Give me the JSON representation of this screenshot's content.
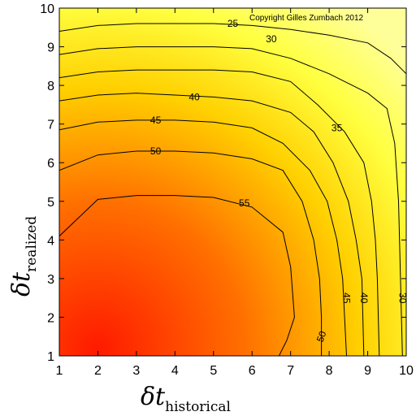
{
  "chart_data": {
    "type": "heatmap",
    "style": "filled-contour",
    "copyright": "Copyright Gilles Zumbach 2012",
    "xlabel": {
      "main": "δt",
      "sub": "historical"
    },
    "ylabel": {
      "main": "δt",
      "sub": "realized"
    },
    "xlim": [
      1,
      10
    ],
    "ylim": [
      1,
      10
    ],
    "xticks": [
      1,
      2,
      3,
      4,
      5,
      6,
      7,
      8,
      9,
      10
    ],
    "yticks": [
      1,
      2,
      3,
      4,
      5,
      6,
      7,
      8,
      9,
      10
    ],
    "grid": false,
    "colormap": [
      "#ff1a00",
      "#ff7000",
      "#ffd000",
      "#ffff40",
      "#ffff99"
    ],
    "contours": [
      {
        "level": 25,
        "label": "25",
        "label_at": [
          5.5,
          9.6
        ],
        "points": [
          [
            1,
            9.4
          ],
          [
            2,
            9.55
          ],
          [
            3,
            9.6
          ],
          [
            4,
            9.6
          ],
          [
            5,
            9.6
          ],
          [
            6,
            9.55
          ],
          [
            7,
            9.45
          ],
          [
            8,
            9.3
          ],
          [
            9,
            9.1
          ],
          [
            9.6,
            8.7
          ],
          [
            10,
            8.3
          ]
        ]
      },
      {
        "level": 30,
        "label": "30",
        "label_at": [
          6.5,
          9.2
        ],
        "points": [
          [
            1,
            8.8
          ],
          [
            2,
            8.95
          ],
          [
            3,
            9.0
          ],
          [
            4,
            9.0
          ],
          [
            5,
            9.0
          ],
          [
            6,
            8.95
          ],
          [
            7,
            8.7
          ],
          [
            8,
            8.3
          ],
          [
            9,
            7.8
          ],
          [
            9.5,
            7.4
          ],
          [
            9.7,
            6.5
          ],
          [
            9.8,
            5.0
          ],
          [
            9.85,
            3.0
          ],
          [
            9.9,
            1.0
          ]
        ]
      },
      {
        "level": 35,
        "label": "35",
        "label_at": [
          8.2,
          6.9
        ],
        "points": [
          [
            1,
            8.2
          ],
          [
            2,
            8.35
          ],
          [
            3,
            8.4
          ],
          [
            4,
            8.4
          ],
          [
            5,
            8.4
          ],
          [
            6,
            8.35
          ],
          [
            7,
            8.1
          ],
          [
            7.7,
            7.5
          ],
          [
            8.4,
            6.8
          ],
          [
            8.9,
            6.0
          ],
          [
            9.1,
            5.0
          ],
          [
            9.2,
            4.0
          ],
          [
            9.25,
            3.0
          ],
          [
            9.3,
            1.0
          ]
        ]
      },
      {
        "level": 40,
        "label": "40",
        "label_at": [
          4.5,
          7.7
        ],
        "points": [
          [
            1,
            7.6
          ],
          [
            2,
            7.75
          ],
          [
            3,
            7.8
          ],
          [
            4,
            7.75
          ],
          [
            5,
            7.7
          ],
          [
            6,
            7.6
          ],
          [
            7,
            7.3
          ],
          [
            7.6,
            6.8
          ],
          [
            8.1,
            6.0
          ],
          [
            8.5,
            5.0
          ],
          [
            8.7,
            4.0
          ],
          [
            8.85,
            3.0
          ],
          [
            8.9,
            1.0
          ]
        ]
      },
      {
        "level": 45,
        "label": "45",
        "label_at": [
          3.5,
          7.1
        ],
        "points": [
          [
            1,
            6.85
          ],
          [
            2,
            7.05
          ],
          [
            3,
            7.1
          ],
          [
            4,
            7.1
          ],
          [
            5,
            7.05
          ],
          [
            6,
            6.9
          ],
          [
            6.8,
            6.5
          ],
          [
            7.5,
            5.8
          ],
          [
            7.95,
            5.0
          ],
          [
            8.2,
            4.0
          ],
          [
            8.35,
            3.0
          ],
          [
            8.4,
            2.0
          ],
          [
            8.45,
            1.0
          ]
        ]
      },
      {
        "level": 50,
        "label": "50",
        "label_at": [
          3.5,
          6.3
        ],
        "points": [
          [
            1,
            5.8
          ],
          [
            2,
            6.2
          ],
          [
            3,
            6.3
          ],
          [
            4,
            6.3
          ],
          [
            5,
            6.25
          ],
          [
            6,
            6.1
          ],
          [
            6.8,
            5.8
          ],
          [
            7.3,
            5.0
          ],
          [
            7.6,
            4.0
          ],
          [
            7.75,
            3.0
          ],
          [
            7.8,
            2.0
          ],
          [
            7.8,
            1.0
          ]
        ]
      },
      {
        "level": 55,
        "label": "55",
        "label_at": [
          5.8,
          4.95
        ],
        "points": [
          [
            1,
            4.1
          ],
          [
            2,
            5.05
          ],
          [
            3,
            5.15
          ],
          [
            4,
            5.15
          ],
          [
            5,
            5.1
          ],
          [
            6,
            4.85
          ],
          [
            6.8,
            4.2
          ],
          [
            7.0,
            3.3
          ],
          [
            7.1,
            2.0
          ],
          [
            6.9,
            1.4
          ],
          [
            6.7,
            1.0
          ]
        ]
      }
    ],
    "extra_labels": [
      {
        "label": "50",
        "at": [
          7.8,
          1.5
        ],
        "rotate": -70
      },
      {
        "label": "45",
        "at": [
          8.45,
          2.5
        ],
        "rotate": 90
      },
      {
        "label": "40",
        "at": [
          8.9,
          2.5
        ],
        "rotate": 90
      },
      {
        "label": "30",
        "at": [
          9.9,
          2.5
        ],
        "rotate": 90
      }
    ]
  }
}
